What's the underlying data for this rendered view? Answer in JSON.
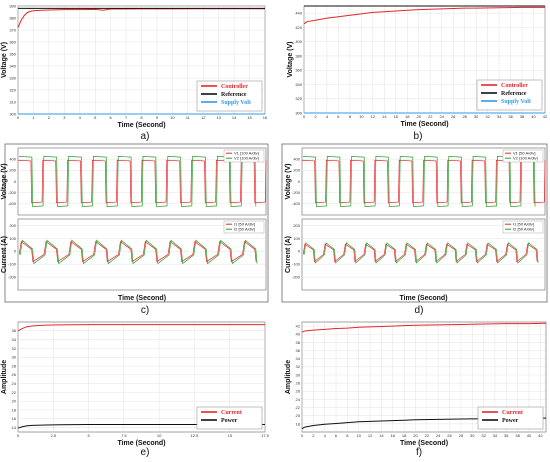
{
  "colors": {
    "controller": "#e8262a",
    "reference": "#111111",
    "supply": "#2f9be6",
    "v1": "#e8262a",
    "v2": "#2e9e2e",
    "current": "#e8262a",
    "power": "#111111",
    "grid": "#d0d0d0",
    "border": "#666666"
  },
  "chart_data": [
    {
      "id": "a",
      "type": "line",
      "caption": "a)",
      "xlabel": "Time (Second)",
      "ylabel": "Voltage (V)",
      "xlim": [
        0,
        16
      ],
      "ylim": [
        300,
        390
      ],
      "xticks": [
        "0",
        "1",
        "2",
        "3",
        "4",
        "5",
        "6",
        "7",
        "8",
        "9",
        "10",
        "11",
        "12",
        "13",
        "14",
        "15",
        "16"
      ],
      "yticks": [
        "300",
        "310",
        "320",
        "330",
        "340",
        "350",
        "360",
        "370",
        "380",
        "390"
      ],
      "legend": "bottom-right",
      "series": [
        {
          "name": "Controller",
          "color_key": "controller",
          "x": [
            0,
            0.2,
            0.4,
            0.6,
            0.8,
            1,
            1.5,
            2,
            3,
            4,
            5,
            5.5,
            6,
            7,
            8,
            10,
            12,
            14,
            16
          ],
          "y": [
            372,
            378,
            382,
            384.5,
            385.5,
            386,
            386.5,
            386.7,
            387,
            387,
            387.2,
            386.5,
            387.5,
            387.5,
            387.6,
            387.6,
            387.7,
            387.7,
            387.7
          ]
        },
        {
          "name": "Reference",
          "color_key": "reference",
          "x": [
            0,
            16
          ],
          "y": [
            388,
            388
          ]
        },
        {
          "name": "Supply Volt",
          "color_key": "supply",
          "x": [
            0,
            16
          ],
          "y": [
            300,
            300
          ]
        }
      ]
    },
    {
      "id": "b",
      "type": "line",
      "caption": "b)",
      "xlabel": "Time (Second)",
      "ylabel": "Voltage (V)",
      "xlim": [
        0,
        42
      ],
      "ylim": [
        300,
        450
      ],
      "xticks": [
        "0",
        "2",
        "4",
        "6",
        "8",
        "10",
        "12",
        "14",
        "16",
        "18",
        "20",
        "22",
        "24",
        "26",
        "28",
        "30",
        "32",
        "34",
        "36",
        "38",
        "40",
        "42"
      ],
      "yticks": [
        "300",
        "320",
        "340",
        "360",
        "380",
        "400",
        "420",
        "440"
      ],
      "legend": "bottom-right",
      "series": [
        {
          "name": "Controller",
          "color_key": "controller",
          "x": [
            0,
            0.5,
            2,
            4,
            6,
            8,
            10,
            12,
            14,
            16,
            18,
            20,
            22,
            24,
            26,
            28,
            30,
            34,
            38,
            42
          ],
          "y": [
            425,
            428,
            430,
            433,
            435,
            437,
            439,
            441,
            442,
            443,
            444,
            445,
            445.5,
            446,
            446.5,
            447,
            447,
            447.5,
            448,
            448
          ]
        },
        {
          "name": "Reference",
          "color_key": "reference",
          "x": [
            0,
            42
          ],
          "y": [
            450,
            450
          ]
        },
        {
          "name": "Supply Volt",
          "color_key": "supply",
          "x": [
            0,
            42
          ],
          "y": [
            300,
            300
          ]
        }
      ]
    },
    {
      "id": "c",
      "type": "line",
      "caption": "c)",
      "xlabel": "Time (Second)",
      "voltage": {
        "ylabel": "Voltage (V)",
        "ylim": [
          -600,
          600
        ],
        "yticks": [
          "-400",
          "-200",
          "0",
          "200",
          "400"
        ],
        "cycles": 10,
        "series": [
          {
            "name": "V1 [100 A/div]",
            "color_key": "v1",
            "amplitude": 380
          },
          {
            "name": "V2 [100 A/div]",
            "color_key": "v2",
            "amplitude": 450
          }
        ]
      },
      "current": {
        "ylabel": "Current (A)",
        "ylim": [
          -300,
          250
        ],
        "yticks": [
          "-200",
          "-100",
          "0",
          "100",
          "200"
        ],
        "cycles": 10,
        "series": [
          {
            "name": "I1 [50 A/div]",
            "color_key": "v1",
            "peak": 75,
            "trough": -80
          },
          {
            "name": "I2 [50 A/div]",
            "color_key": "v2",
            "peak": 85,
            "trough": -95
          }
        ]
      }
    },
    {
      "id": "d",
      "type": "line",
      "caption": "d)",
      "xlabel": "Time (Second)",
      "voltage": {
        "ylabel": "Voltage (V)",
        "ylim": [
          -600,
          600
        ],
        "yticks": [
          "-400",
          "-200",
          "0",
          "200",
          "400"
        ],
        "cycles": 10,
        "series": [
          {
            "name": "V1 [50 A/div]",
            "color_key": "v1",
            "amplitude": 380
          },
          {
            "name": "V2 [100 A/div]",
            "color_key": "v2",
            "amplitude": 450
          }
        ]
      },
      "current": {
        "ylabel": "Current (A)",
        "ylim": [
          -300,
          250
        ],
        "yticks": [
          "-200",
          "-100",
          "0",
          "100",
          "200"
        ],
        "cycles": 12,
        "series": [
          {
            "name": "I1 [50 A/div]",
            "color_key": "v1",
            "peak": 55,
            "trough": -80
          },
          {
            "name": "I2 [50 A/div]",
            "color_key": "v2",
            "peak": 65,
            "trough": -90
          }
        ]
      }
    },
    {
      "id": "e",
      "type": "line",
      "caption": "e)",
      "xlabel": "Time (Second)",
      "ylabel": "Amplitude",
      "xlim": [
        0,
        17.5
      ],
      "ylim": [
        13,
        38
      ],
      "xticks": [
        "0",
        "2.5",
        "5",
        "7.5",
        "10",
        "12.5",
        "15",
        "17.5"
      ],
      "yticks": [
        "14",
        "16",
        "18",
        "20",
        "22",
        "24",
        "26",
        "28",
        "30",
        "32",
        "34",
        "36"
      ],
      "legend": "bottom-right",
      "series": [
        {
          "name": "Current",
          "color_key": "current",
          "x": [
            0,
            0.3,
            0.6,
            1,
            1.5,
            2,
            3,
            5,
            8,
            12,
            17.5
          ],
          "y": [
            36,
            36.5,
            36.9,
            37.1,
            37.2,
            37.3,
            37.35,
            37.4,
            37.4,
            37.4,
            37.4
          ]
        },
        {
          "name": "Power",
          "color_key": "power",
          "x": [
            0,
            0.3,
            0.6,
            1,
            2,
            3,
            5,
            8,
            12,
            17.5
          ],
          "y": [
            13.9,
            14.2,
            14.4,
            14.5,
            14.6,
            14.65,
            14.7,
            14.7,
            14.7,
            14.7
          ]
        }
      ]
    },
    {
      "id": "f",
      "type": "line",
      "caption": "f)",
      "xlabel": "Time (Second)",
      "ylabel": "Amplitude",
      "xlim": [
        0,
        43
      ],
      "ylim": [
        16,
        43
      ],
      "xticks": [
        "0",
        "2",
        "4",
        "6",
        "8",
        "10",
        "12",
        "14",
        "16",
        "18",
        "20",
        "22",
        "24",
        "26",
        "28",
        "30",
        "32",
        "34",
        "36",
        "38",
        "40",
        "42"
      ],
      "yticks": [
        "18",
        "20",
        "22",
        "24",
        "26",
        "28",
        "30",
        "32",
        "34",
        "36",
        "38",
        "40",
        "42"
      ],
      "legend": "bottom-right",
      "series": [
        {
          "name": "Current",
          "color_key": "current",
          "x": [
            0,
            0.5,
            2,
            4,
            6,
            8,
            10,
            12,
            14,
            16,
            18,
            20,
            24,
            28,
            32,
            36,
            40,
            43
          ],
          "y": [
            40.5,
            40.8,
            41,
            41.2,
            41.4,
            41.5,
            41.7,
            41.8,
            41.9,
            42,
            42.1,
            42.2,
            42.3,
            42.4,
            42.5,
            42.6,
            42.6,
            42.7
          ]
        },
        {
          "name": "Power",
          "color_key": "power",
          "x": [
            0,
            0.5,
            2,
            4,
            6,
            8,
            10,
            12,
            14,
            16,
            18,
            20,
            24,
            28,
            32,
            36,
            40,
            43
          ],
          "y": [
            16.8,
            17.2,
            17.6,
            17.9,
            18.1,
            18.3,
            18.5,
            18.6,
            18.7,
            18.8,
            18.9,
            19,
            19.1,
            19.2,
            19.25,
            19.3,
            19.35,
            19.4
          ]
        }
      ]
    }
  ]
}
